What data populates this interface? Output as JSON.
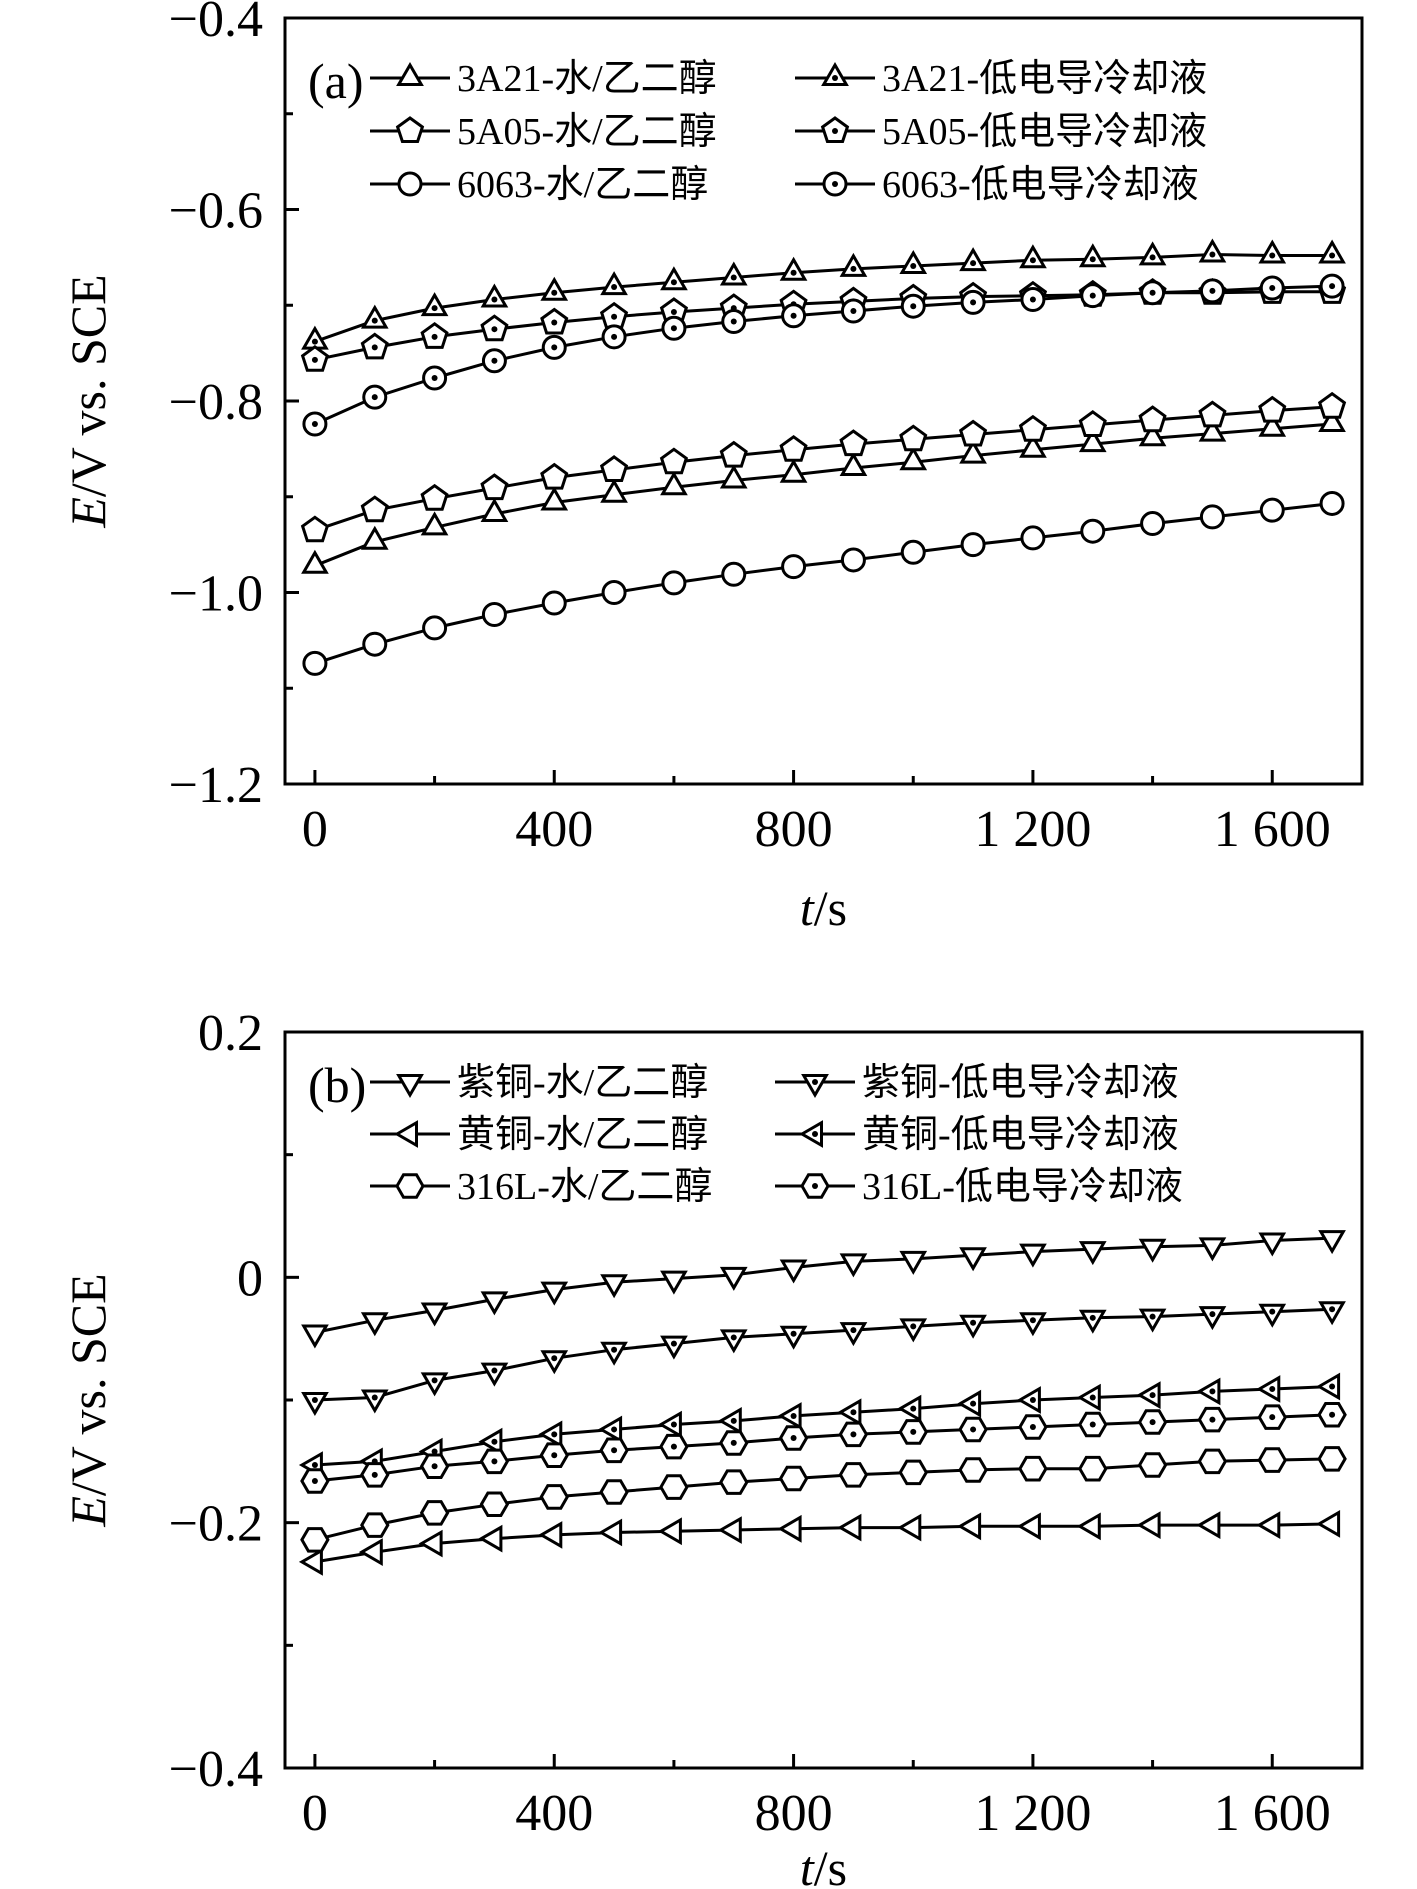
{
  "chart_data": [
    {
      "panel_label": "(a)",
      "type": "line",
      "xlabel_italic": "t",
      "xlabel_rest": "/s",
      "ylabel_italic": "E",
      "ylabel_rest": "/V vs. SCE",
      "xlim": [
        -50,
        1750
      ],
      "ylim": [
        -1.2,
        -0.4
      ],
      "xticks": [
        0,
        400,
        800,
        1200,
        1600
      ],
      "xtick_labels": [
        "0",
        "400",
        "800",
        "1 200",
        "1 600"
      ],
      "yticks": [
        -1.2,
        -1.0,
        -0.8,
        -0.6,
        -0.4
      ],
      "ytick_labels": [
        "−1.2",
        "−1.0",
        "−0.8",
        "−0.6",
        "−0.4"
      ],
      "x": [
        0,
        100,
        200,
        300,
        400,
        500,
        600,
        700,
        800,
        900,
        1000,
        1100,
        1200,
        1300,
        1400,
        1500,
        1600,
        1700
      ],
      "series": [
        {
          "name": "3A21-水/乙二醇",
          "marker": "triangle-up",
          "dot": false,
          "values": [
            -0.972,
            -0.947,
            -0.932,
            -0.918,
            -0.906,
            -0.898,
            -0.89,
            -0.883,
            -0.877,
            -0.87,
            -0.864,
            -0.857,
            -0.851,
            -0.845,
            -0.839,
            -0.834,
            -0.829,
            -0.824
          ]
        },
        {
          "name": "3A21-低电导冷却液",
          "marker": "triangle-up",
          "dot": true,
          "values": [
            -0.738,
            -0.716,
            -0.703,
            -0.694,
            -0.687,
            -0.681,
            -0.676,
            -0.671,
            -0.666,
            -0.662,
            -0.659,
            -0.656,
            -0.653,
            -0.652,
            -0.65,
            -0.647,
            -0.648,
            -0.648
          ]
        },
        {
          "name": "5A05-水/乙二醇",
          "marker": "pentagon",
          "dot": false,
          "values": [
            -0.935,
            -0.914,
            -0.902,
            -0.891,
            -0.88,
            -0.872,
            -0.864,
            -0.857,
            -0.851,
            -0.845,
            -0.84,
            -0.835,
            -0.83,
            -0.825,
            -0.82,
            -0.815,
            -0.81,
            -0.806
          ]
        },
        {
          "name": "5A05-低电导冷却液",
          "marker": "pentagon",
          "dot": true,
          "values": [
            -0.757,
            -0.744,
            -0.733,
            -0.725,
            -0.718,
            -0.712,
            -0.707,
            -0.703,
            -0.699,
            -0.696,
            -0.693,
            -0.691,
            -0.69,
            -0.689,
            -0.687,
            -0.687,
            -0.686,
            -0.686
          ]
        },
        {
          "name": "6063-水/乙二醇",
          "marker": "circle",
          "dot": false,
          "values": [
            -1.074,
            -1.054,
            -1.037,
            -1.023,
            -1.011,
            -1.0,
            -0.99,
            -0.981,
            -0.973,
            -0.966,
            -0.958,
            -0.95,
            -0.943,
            -0.936,
            -0.928,
            -0.921,
            -0.914,
            -0.907
          ]
        },
        {
          "name": "6063-低电导冷却液",
          "marker": "circle",
          "dot": true,
          "values": [
            -0.824,
            -0.796,
            -0.776,
            -0.758,
            -0.744,
            -0.733,
            -0.724,
            -0.717,
            -0.711,
            -0.706,
            -0.701,
            -0.697,
            -0.694,
            -0.69,
            -0.687,
            -0.685,
            -0.682,
            -0.68
          ]
        }
      ]
    },
    {
      "panel_label": "(b)",
      "type": "line",
      "xlabel_italic": "t",
      "xlabel_rest": "/s",
      "ylabel_italic": "E",
      "ylabel_rest": "/V vs. SCE",
      "xlim": [
        -50,
        1750
      ],
      "ylim": [
        -0.4,
        0.2
      ],
      "xticks": [
        0,
        400,
        800,
        1200,
        1600
      ],
      "xtick_labels": [
        "0",
        "400",
        "800",
        "1 200",
        "1 600"
      ],
      "yticks": [
        -0.4,
        -0.2,
        0,
        0.2
      ],
      "ytick_labels": [
        "−0.4",
        "−0.2",
        "0",
        "0.2"
      ],
      "x": [
        0,
        100,
        200,
        300,
        400,
        500,
        600,
        700,
        800,
        900,
        1000,
        1100,
        1200,
        1300,
        1400,
        1500,
        1600,
        1700
      ],
      "series": [
        {
          "name": "紫铜-水/乙二醇",
          "marker": "triangle-down",
          "dot": false,
          "values": [
            -0.045,
            -0.035,
            -0.027,
            -0.018,
            -0.01,
            -0.004,
            -0.001,
            0.002,
            0.008,
            0.013,
            0.015,
            0.018,
            0.021,
            0.023,
            0.025,
            0.026,
            0.03,
            0.032
          ]
        },
        {
          "name": "紫铜-低电导冷却液",
          "marker": "triangle-down",
          "dot": true,
          "values": [
            -0.1,
            -0.098,
            -0.084,
            -0.076,
            -0.066,
            -0.059,
            -0.054,
            -0.049,
            -0.046,
            -0.043,
            -0.04,
            -0.037,
            -0.035,
            -0.033,
            -0.032,
            -0.03,
            -0.028,
            -0.026
          ]
        },
        {
          "name": "黄铜-水/乙二醇",
          "marker": "triangle-left",
          "dot": false,
          "values": [
            -0.232,
            -0.224,
            -0.217,
            -0.213,
            -0.21,
            -0.208,
            -0.207,
            -0.206,
            -0.205,
            -0.204,
            -0.204,
            -0.203,
            -0.203,
            -0.203,
            -0.202,
            -0.202,
            -0.202,
            -0.201
          ]
        },
        {
          "name": "黄铜-低电导冷却液",
          "marker": "triangle-left",
          "dot": true,
          "values": [
            -0.153,
            -0.15,
            -0.142,
            -0.134,
            -0.128,
            -0.124,
            -0.12,
            -0.117,
            -0.113,
            -0.11,
            -0.107,
            -0.103,
            -0.1,
            -0.098,
            -0.096,
            -0.093,
            -0.091,
            -0.089
          ]
        },
        {
          "name": "316L-水/乙二醇",
          "marker": "hexagon",
          "dot": false,
          "values": [
            -0.214,
            -0.202,
            -0.192,
            -0.185,
            -0.179,
            -0.175,
            -0.171,
            -0.167,
            -0.164,
            -0.161,
            -0.159,
            -0.157,
            -0.156,
            -0.156,
            -0.153,
            -0.15,
            -0.149,
            -0.148
          ]
        },
        {
          "name": "316L-低电导冷却液",
          "marker": "hexagon",
          "dot": true,
          "values": [
            -0.166,
            -0.161,
            -0.154,
            -0.15,
            -0.145,
            -0.141,
            -0.138,
            -0.135,
            -0.131,
            -0.128,
            -0.126,
            -0.124,
            -0.122,
            -0.12,
            -0.118,
            -0.116,
            -0.114,
            -0.112
          ]
        }
      ]
    }
  ]
}
